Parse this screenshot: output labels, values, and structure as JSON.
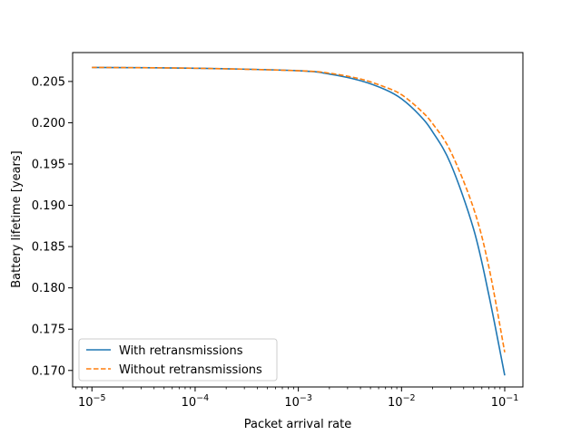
{
  "chart_data": {
    "type": "line",
    "xscale": "log",
    "xlabel": "Packet arrival rate",
    "ylabel": "Battery lifetime [years]",
    "xlim": [
      6.5e-06,
      0.15
    ],
    "ylim": [
      0.168,
      0.2085
    ],
    "x_ticks": [
      {
        "value": 1e-05,
        "base": "10",
        "exp": "−5"
      },
      {
        "value": 0.0001,
        "base": "10",
        "exp": "−4"
      },
      {
        "value": 0.001,
        "base": "10",
        "exp": "−3"
      },
      {
        "value": 0.01,
        "base": "10",
        "exp": "−2"
      },
      {
        "value": 0.1,
        "base": "10",
        "exp": "−1"
      }
    ],
    "y_ticks": [
      {
        "value": 0.17,
        "label": "0.170"
      },
      {
        "value": 0.175,
        "label": "0.175"
      },
      {
        "value": 0.18,
        "label": "0.180"
      },
      {
        "value": 0.185,
        "label": "0.185"
      },
      {
        "value": 0.19,
        "label": "0.190"
      },
      {
        "value": 0.195,
        "label": "0.195"
      },
      {
        "value": 0.2,
        "label": "0.200"
      },
      {
        "value": 0.205,
        "label": "0.205"
      }
    ],
    "legend_position": "lower-left",
    "series": [
      {
        "name": "With retransmissions",
        "color": "#1f77b4",
        "dash": "solid",
        "x": [
          1e-05,
          0.0001,
          0.001,
          0.002,
          0.004,
          0.007,
          0.01,
          0.015,
          0.02,
          0.03,
          0.05,
          0.07,
          0.1
        ],
        "y": [
          0.2067,
          0.2066,
          0.2063,
          0.2059,
          0.2051,
          0.204,
          0.2029,
          0.2009,
          0.1989,
          0.195,
          0.1871,
          0.1792,
          0.1694
        ]
      },
      {
        "name": "Without retransmissions",
        "color": "#ff7f0e",
        "dash": "dashed",
        "x": [
          1e-05,
          0.0001,
          0.001,
          0.002,
          0.004,
          0.007,
          0.01,
          0.015,
          0.02,
          0.03,
          0.05,
          0.07,
          0.1
        ],
        "y": [
          0.2067,
          0.2066,
          0.2063,
          0.206,
          0.2053,
          0.2043,
          0.2034,
          0.2016,
          0.1999,
          0.1965,
          0.1896,
          0.1826,
          0.1722
        ]
      }
    ]
  }
}
